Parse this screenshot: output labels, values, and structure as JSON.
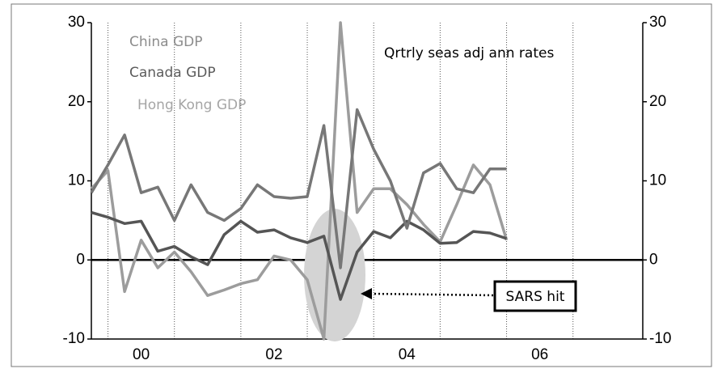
{
  "chart_data": {
    "type": "line",
    "annotations": [
      "Qrtrly seas adj ann rates",
      "SARS hit"
    ],
    "x": [
      1999.75,
      2000,
      2000.25,
      2000.5,
      2000.75,
      2001,
      2001.25,
      2001.5,
      2001.75,
      2002,
      2002.25,
      2002.5,
      2002.75,
      2003,
      2003.25,
      2003.5,
      2003.75,
      2004,
      2004.25,
      2004.5,
      2004.75,
      2005,
      2005.25,
      2005.5,
      2005.75,
      2006
    ],
    "series": [
      {
        "name": "China GDP",
        "color": "#777777",
        "label_color": "#8c8c8c",
        "values": [
          8.5,
          12,
          15.8,
          8.5,
          9.2,
          5,
          9.5,
          6,
          5,
          6.5,
          9.5,
          8,
          7.8,
          8,
          17,
          -1,
          19,
          14,
          10,
          4,
          11,
          12.2,
          9,
          8.5,
          11.5,
          11.5
        ]
      },
      {
        "name": "Canada GDP",
        "color": "#555555",
        "label_color": "#5c5c5c",
        "values": [
          6,
          5.4,
          4.6,
          4.9,
          1.1,
          1.7,
          0.4,
          -0.6,
          3.2,
          4.9,
          3.5,
          3.8,
          2.8,
          2.2,
          3,
          -5,
          1,
          3.6,
          2.8,
          4.9,
          3.8,
          2.1,
          2.2,
          3.6,
          3.4,
          2.7
        ]
      },
      {
        "name": "Hong Kong GDP",
        "color": "#9c9c9c",
        "label_color": "#a5a5a5",
        "values": [
          9,
          11.3,
          -4,
          2.5,
          -1,
          1,
          -1.5,
          -4.5,
          -3.8,
          -3,
          -2.5,
          0.5,
          0,
          -2.5,
          -10,
          30,
          6,
          9,
          9,
          7,
          4.5,
          2.3,
          7,
          12,
          9.5,
          2.5
        ]
      }
    ],
    "xlim": [
      1999.75,
      2008.05
    ],
    "xticks": [
      {
        "value": 2000.5,
        "label": "00"
      },
      {
        "value": 2002.5,
        "label": "02"
      },
      {
        "value": 2004.5,
        "label": "04"
      },
      {
        "value": 2006.5,
        "label": "06"
      }
    ],
    "xgrid": [
      2000,
      2001,
      2002,
      2003,
      2004,
      2005,
      2006,
      2007
    ],
    "ylim": [
      -10,
      30
    ],
    "yticks": [
      -10,
      0,
      10,
      20,
      30
    ],
    "y2lim": [
      -10,
      30
    ],
    "y2ticks": [
      -10,
      0,
      10,
      20,
      30
    ]
  }
}
